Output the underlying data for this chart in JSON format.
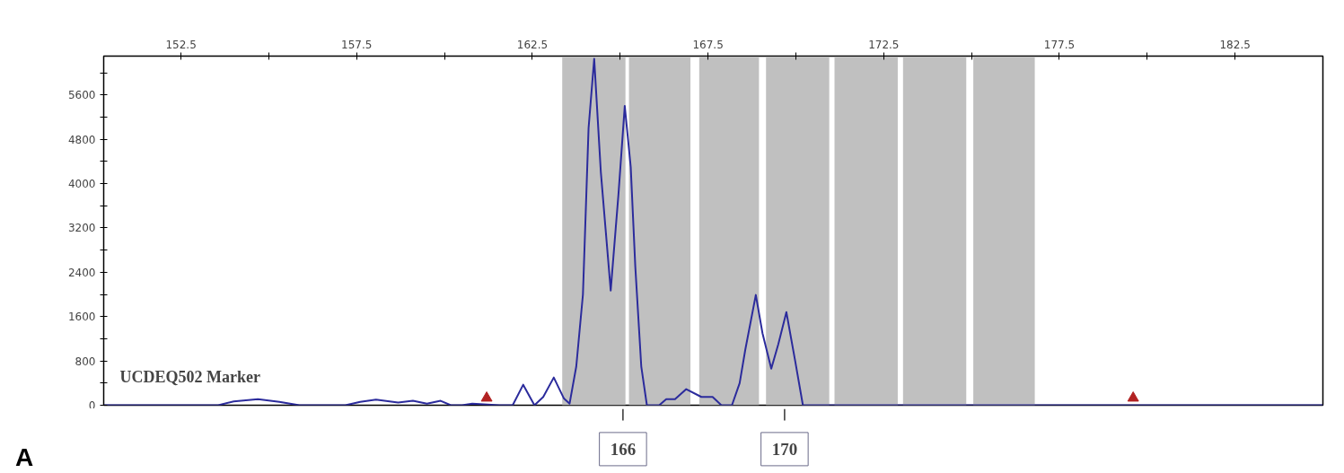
{
  "chart_data": {
    "type": "line",
    "xlim": [
      150.3,
      185
    ],
    "ylim": [
      0,
      6300
    ],
    "xticks": [
      152.5,
      {
        "value": 155,
        "label": null
      },
      157.5,
      {
        "value": 160,
        "label": null
      },
      162.5,
      {
        "value": 165,
        "label": null
      },
      167.5,
      {
        "value": 170,
        "label": null
      },
      172.5,
      {
        "value": 175,
        "label": null
      },
      177.5,
      {
        "value": 180,
        "label": null
      },
      182.5
    ],
    "yticks": [
      0,
      {
        "value": 400,
        "label": null
      },
      800,
      {
        "value": 1200,
        "label": null
      },
      1600,
      {
        "value": 2000,
        "label": null
      },
      2400,
      {
        "value": 2800,
        "label": null
      },
      3200,
      {
        "value": 3600,
        "label": null
      },
      4000,
      {
        "value": 4400,
        "label": null
      },
      4800,
      {
        "value": 5200,
        "label": null
      },
      5600,
      {
        "value": 6000,
        "label": null
      }
    ],
    "grid": false,
    "series": [
      {
        "color": "#2b2b9c",
        "marker": "none",
        "line_style": "solid",
        "x": [
          150.3,
          153.56,
          154.0,
          154.69,
          155.3,
          155.87,
          157.18,
          157.6,
          158.05,
          158.68,
          159.1,
          159.5,
          159.89,
          160.18,
          160.5,
          160.79,
          161.56,
          161.94,
          162.24,
          162.56,
          162.81,
          163.11,
          163.4,
          163.56,
          163.75,
          163.94,
          164.1,
          164.26,
          164.45,
          164.73,
          164.95,
          165.13,
          165.3,
          165.43,
          165.6,
          165.76,
          166.11,
          166.31,
          166.56,
          166.88,
          167.31,
          167.63,
          167.88,
          168.18,
          168.4,
          168.56,
          168.86,
          169.05,
          169.3,
          169.5,
          169.73,
          169.98,
          170.2,
          185
        ],
        "values": [
          0,
          0,
          70,
          110,
          60,
          0,
          0,
          60,
          100,
          50,
          80,
          30,
          80,
          0,
          0,
          30,
          0,
          0,
          370,
          0,
          150,
          500,
          120,
          30,
          700,
          2000,
          5000,
          6250,
          4200,
          2070,
          3800,
          5400,
          4300,
          2500,
          700,
          0,
          0,
          110,
          110,
          290,
          150,
          150,
          0,
          0,
          400,
          1000,
          1990,
          1300,
          660,
          1100,
          1680,
          800,
          0,
          0
        ]
      },
      {
        "type": "scatter",
        "color": "#b22222",
        "marker": "triangle",
        "x": [
          161.2,
          179.6
        ],
        "values": [
          130,
          130
        ]
      }
    ],
    "bands": [
      {
        "axis": "x",
        "from": 163.35,
        "to": 165.15,
        "color": "#c0c0c0"
      },
      {
        "axis": "x",
        "from": 165.25,
        "to": 167.0,
        "color": "#c0c0c0"
      },
      {
        "axis": "x",
        "from": 167.25,
        "to": 168.95,
        "color": "#c0c0c0"
      },
      {
        "axis": "x",
        "from": 169.15,
        "to": 170.95,
        "color": "#c0c0c0"
      },
      {
        "axis": "x",
        "from": 171.1,
        "to": 172.9,
        "color": "#c0c0c0"
      },
      {
        "axis": "x",
        "from": 173.05,
        "to": 174.85,
        "color": "#c0c0c0"
      },
      {
        "axis": "x",
        "from": 175.05,
        "to": 176.8,
        "color": "#c0c0c0"
      }
    ],
    "annotations": [
      "UCDEQ502 Marker",
      "A",
      {
        "text": "166",
        "x": 165.13,
        "y": 0
      },
      {
        "text": "170",
        "x": 169.73,
        "y": 0
      }
    ]
  }
}
